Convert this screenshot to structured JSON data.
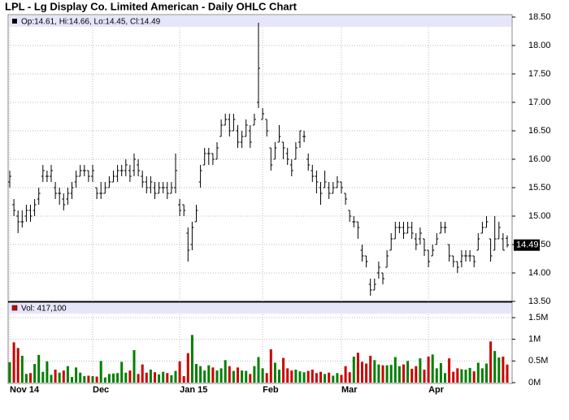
{
  "chart_data": {
    "type": "ohlc",
    "title": "LPL - Lg Display Co. Limited American - Daily OHLC Chart",
    "ohlc_legend": "Op:14.61, Hi:14.66, Lo:14.45, Cl:14.49",
    "volume_legend": "Vol: 417,100",
    "categories": [
      "Nov 14",
      null,
      null,
      null,
      null,
      null,
      null,
      null,
      null,
      null,
      null,
      null,
      null,
      null,
      null,
      null,
      null,
      null,
      null,
      null,
      "Dec",
      null,
      null,
      null,
      null,
      null,
      null,
      null,
      null,
      null,
      null,
      null,
      null,
      null,
      null,
      null,
      null,
      null,
      null,
      null,
      null,
      "Jan 15",
      null,
      null,
      null,
      null,
      null,
      null,
      null,
      null,
      null,
      null,
      null,
      null,
      null,
      null,
      null,
      null,
      null,
      null,
      null,
      "Feb",
      null,
      null,
      null,
      null,
      null,
      null,
      null,
      null,
      null,
      null,
      null,
      null,
      null,
      null,
      null,
      null,
      null,
      null,
      "Mar",
      null,
      null,
      null,
      null,
      null,
      null,
      null,
      null,
      null,
      null,
      null,
      null,
      null,
      null,
      null,
      null,
      null,
      null,
      null,
      null,
      "Apr",
      null,
      null,
      null,
      null,
      null,
      null,
      null,
      null,
      null,
      null,
      null,
      null,
      null,
      null,
      null,
      null,
      null,
      null,
      null
    ],
    "ohlc": [
      [
        15.6,
        15.8,
        15.5,
        15.7
      ],
      [
        15.2,
        15.3,
        15.0,
        15.1
      ],
      [
        15.0,
        15.1,
        14.7,
        14.9
      ],
      [
        14.9,
        15.1,
        14.8,
        14.9
      ],
      [
        15.0,
        15.2,
        14.9,
        15.1
      ],
      [
        15.1,
        15.2,
        14.9,
        15.0
      ],
      [
        15.1,
        15.3,
        15.0,
        15.2
      ],
      [
        15.3,
        15.5,
        15.2,
        15.4
      ],
      [
        15.7,
        15.9,
        15.6,
        15.8
      ],
      [
        15.7,
        15.8,
        15.6,
        15.7
      ],
      [
        15.7,
        15.9,
        15.6,
        15.8
      ],
      [
        15.5,
        15.6,
        15.3,
        15.4
      ],
      [
        15.4,
        15.5,
        15.2,
        15.4
      ],
      [
        15.3,
        15.4,
        15.1,
        15.2
      ],
      [
        15.3,
        15.5,
        15.2,
        15.4
      ],
      [
        15.4,
        15.6,
        15.3,
        15.5
      ],
      [
        15.6,
        15.8,
        15.5,
        15.7
      ],
      [
        15.7,
        15.9,
        15.7,
        15.8
      ],
      [
        15.8,
        15.9,
        15.7,
        15.8
      ],
      [
        15.8,
        15.8,
        15.6,
        15.7
      ],
      [
        15.7,
        15.9,
        15.6,
        15.8
      ],
      [
        15.5,
        15.5,
        15.3,
        15.4
      ],
      [
        15.4,
        15.6,
        15.3,
        15.4
      ],
      [
        15.4,
        15.6,
        15.4,
        15.5
      ],
      [
        15.5,
        15.7,
        15.5,
        15.6
      ],
      [
        15.6,
        15.8,
        15.6,
        15.7
      ],
      [
        15.7,
        15.9,
        15.6,
        15.8
      ],
      [
        15.8,
        15.9,
        15.7,
        15.8
      ],
      [
        15.8,
        16.0,
        15.7,
        15.9
      ],
      [
        15.8,
        15.9,
        15.6,
        15.7
      ],
      [
        15.8,
        16.1,
        15.7,
        16.0
      ],
      [
        15.9,
        16.0,
        15.7,
        15.8
      ],
      [
        15.7,
        15.8,
        15.5,
        15.6
      ],
      [
        15.6,
        15.7,
        15.4,
        15.5
      ],
      [
        15.5,
        15.7,
        15.4,
        15.6
      ],
      [
        15.5,
        15.6,
        15.3,
        15.4
      ],
      [
        15.4,
        15.6,
        15.4,
        15.5
      ],
      [
        15.5,
        15.6,
        15.4,
        15.5
      ],
      [
        15.5,
        15.6,
        15.3,
        15.4
      ],
      [
        15.4,
        15.6,
        15.4,
        15.5
      ],
      [
        15.5,
        16.1,
        15.4,
        15.8
      ],
      [
        15.2,
        15.3,
        15.0,
        15.1
      ],
      [
        15.2,
        15.2,
        15.0,
        15.1
      ],
      [
        14.7,
        14.8,
        14.2,
        14.4
      ],
      [
        14.5,
        14.9,
        14.4,
        14.8
      ],
      [
        14.9,
        15.2,
        14.9,
        15.1
      ],
      [
        15.6,
        15.9,
        15.5,
        15.8
      ],
      [
        15.9,
        16.2,
        15.9,
        16.1
      ],
      [
        16.1,
        16.2,
        15.9,
        16.1
      ],
      [
        16.1,
        16.1,
        15.9,
        16.0
      ],
      [
        16.0,
        16.3,
        16.0,
        16.2
      ],
      [
        16.4,
        16.7,
        16.4,
        16.6
      ],
      [
        16.6,
        16.8,
        16.6,
        16.7
      ],
      [
        16.7,
        16.8,
        16.4,
        16.5
      ],
      [
        16.5,
        16.8,
        16.5,
        16.7
      ],
      [
        16.5,
        16.6,
        16.2,
        16.3
      ],
      [
        16.3,
        16.5,
        16.2,
        16.4
      ],
      [
        16.4,
        16.7,
        16.4,
        16.6
      ],
      [
        16.5,
        16.6,
        16.2,
        16.3
      ],
      [
        16.6,
        16.8,
        16.6,
        16.7
      ],
      [
        17.0,
        18.4,
        16.9,
        17.6
      ],
      [
        16.7,
        16.9,
        16.7,
        16.8
      ],
      [
        16.7,
        16.7,
        16.4,
        16.5
      ],
      [
        16.2,
        16.2,
        15.8,
        15.9
      ],
      [
        16.0,
        16.3,
        16.0,
        16.2
      ],
      [
        16.3,
        16.6,
        16.3,
        16.4
      ],
      [
        16.3,
        16.3,
        16.0,
        16.2
      ],
      [
        16.1,
        16.2,
        15.9,
        16.0
      ],
      [
        15.9,
        16.0,
        15.7,
        15.8
      ],
      [
        16.0,
        16.3,
        16.0,
        16.2
      ],
      [
        16.3,
        16.5,
        16.2,
        16.5
      ],
      [
        16.4,
        16.5,
        16.3,
        16.4
      ],
      [
        16.0,
        16.1,
        15.8,
        15.9
      ],
      [
        15.8,
        15.9,
        15.6,
        15.7
      ],
      [
        15.7,
        15.8,
        15.4,
        15.6
      ],
      [
        15.5,
        15.6,
        15.2,
        15.4
      ],
      [
        15.5,
        15.8,
        15.5,
        15.6
      ],
      [
        15.5,
        15.6,
        15.3,
        15.4
      ],
      [
        15.4,
        15.6,
        15.4,
        15.5
      ],
      [
        15.5,
        15.7,
        15.5,
        15.6
      ],
      [
        15.6,
        15.6,
        15.4,
        15.5
      ],
      [
        15.4,
        15.4,
        15.2,
        15.3
      ],
      [
        15.1,
        15.1,
        14.9,
        15.0
      ],
      [
        14.9,
        15.0,
        14.8,
        14.9
      ],
      [
        14.9,
        14.9,
        14.6,
        14.8
      ],
      [
        14.4,
        14.5,
        14.2,
        14.3
      ],
      [
        14.3,
        14.3,
        14.1,
        14.2
      ],
      [
        13.8,
        13.9,
        13.6,
        13.7
      ],
      [
        13.7,
        13.9,
        13.7,
        13.8
      ],
      [
        14.0,
        14.2,
        13.9,
        14.1
      ],
      [
        14.0,
        14.0,
        13.8,
        13.9
      ],
      [
        14.1,
        14.4,
        14.1,
        14.3
      ],
      [
        14.4,
        14.7,
        14.4,
        14.6
      ],
      [
        14.6,
        14.9,
        14.6,
        14.8
      ],
      [
        14.8,
        14.9,
        14.7,
        14.8
      ],
      [
        14.8,
        14.9,
        14.6,
        14.7
      ],
      [
        14.7,
        14.9,
        14.7,
        14.8
      ],
      [
        14.8,
        14.9,
        14.6,
        14.7
      ],
      [
        14.6,
        14.7,
        14.4,
        14.5
      ],
      [
        14.6,
        14.8,
        14.5,
        14.7
      ],
      [
        14.6,
        14.6,
        14.3,
        14.4
      ],
      [
        14.4,
        14.4,
        14.1,
        14.2
      ],
      [
        14.3,
        14.5,
        14.3,
        14.4
      ],
      [
        14.5,
        14.7,
        14.5,
        14.6
      ],
      [
        14.7,
        14.9,
        14.7,
        14.8
      ],
      [
        14.8,
        14.9,
        14.7,
        14.8
      ],
      [
        14.5,
        14.5,
        14.2,
        14.3
      ],
      [
        14.3,
        14.3,
        14.1,
        14.2
      ],
      [
        14.2,
        14.2,
        14.0,
        14.1
      ],
      [
        14.2,
        14.4,
        14.1,
        14.3
      ],
      [
        14.3,
        14.4,
        14.2,
        14.3
      ],
      [
        14.3,
        14.4,
        14.2,
        14.3
      ],
      [
        14.3,
        14.3,
        14.1,
        14.2
      ],
      [
        14.4,
        14.7,
        14.4,
        14.6
      ],
      [
        14.7,
        14.9,
        14.7,
        14.8
      ],
      [
        14.8,
        15.0,
        14.8,
        14.9
      ],
      [
        14.6,
        14.6,
        14.2,
        14.3
      ],
      [
        14.4,
        15.0,
        14.4,
        14.6
      ],
      [
        14.6,
        14.9,
        14.6,
        14.8
      ],
      [
        14.6,
        14.7,
        14.4,
        14.4
      ],
      [
        14.61,
        14.66,
        14.45,
        14.49
      ]
    ],
    "volume": [
      470000,
      930000,
      800000,
      620000,
      200000,
      220000,
      430000,
      640000,
      250000,
      490000,
      180000,
      300000,
      230000,
      280000,
      380000,
      130000,
      350000,
      230000,
      150000,
      160000,
      150000,
      140000,
      500000,
      120000,
      200000,
      210000,
      220000,
      480000,
      230000,
      280000,
      750000,
      200000,
      420000,
      230000,
      300000,
      240000,
      190000,
      250000,
      220000,
      170000,
      270000,
      490000,
      150000,
      680000,
      1100000,
      430000,
      380000,
      280000,
      400000,
      350000,
      280000,
      330000,
      520000,
      380000,
      270000,
      350000,
      280000,
      270000,
      200000,
      380000,
      590000,
      330000,
      220000,
      770000,
      460000,
      300000,
      570000,
      330000,
      280000,
      300000,
      260000,
      240000,
      270000,
      300000,
      220000,
      250000,
      200000,
      230000,
      160000,
      220000,
      180000,
      380000,
      240000,
      600000,
      690000,
      480000,
      440000,
      620000,
      520000,
      420000,
      400000,
      400000,
      410000,
      590000,
      380000,
      420000,
      500000,
      320000,
      380000,
      560000,
      300000,
      600000,
      650000,
      330000,
      450000,
      220000,
      560000,
      250000,
      330000,
      310000,
      300000,
      340000,
      260000,
      460000,
      330000,
      440000,
      950000,
      730000,
      580000,
      600000,
      417100
    ],
    "ylim": [
      13.5,
      18.5
    ],
    "yticks": [
      {
        "value": 13.5,
        "label": "13.50"
      },
      {
        "value": 14,
        "label": "14.00"
      },
      {
        "value": 14.5,
        "label": "14.50"
      },
      {
        "value": 15,
        "label": "15.00"
      },
      {
        "value": 15.5,
        "label": "15.50"
      },
      {
        "value": 16,
        "label": "16.00"
      },
      {
        "value": 16.5,
        "label": "16.50"
      },
      {
        "value": 17,
        "label": "17.00"
      },
      {
        "value": 17.5,
        "label": "17.50"
      },
      {
        "value": 18,
        "label": "18.00"
      },
      {
        "value": 18.5,
        "label": "18.50"
      }
    ],
    "y2lim": [
      0,
      1500000
    ],
    "y2ticks": [
      {
        "value": 0,
        "label": "0M"
      },
      {
        "value": 500000,
        "label": "0.5M"
      },
      {
        "value": 1000000,
        "label": "1M"
      },
      {
        "value": 1500000,
        "label": "1.5M"
      }
    ],
    "grid": true,
    "color": "#000000",
    "up_color": "#008000",
    "down_color": "#cc0000"
  }
}
